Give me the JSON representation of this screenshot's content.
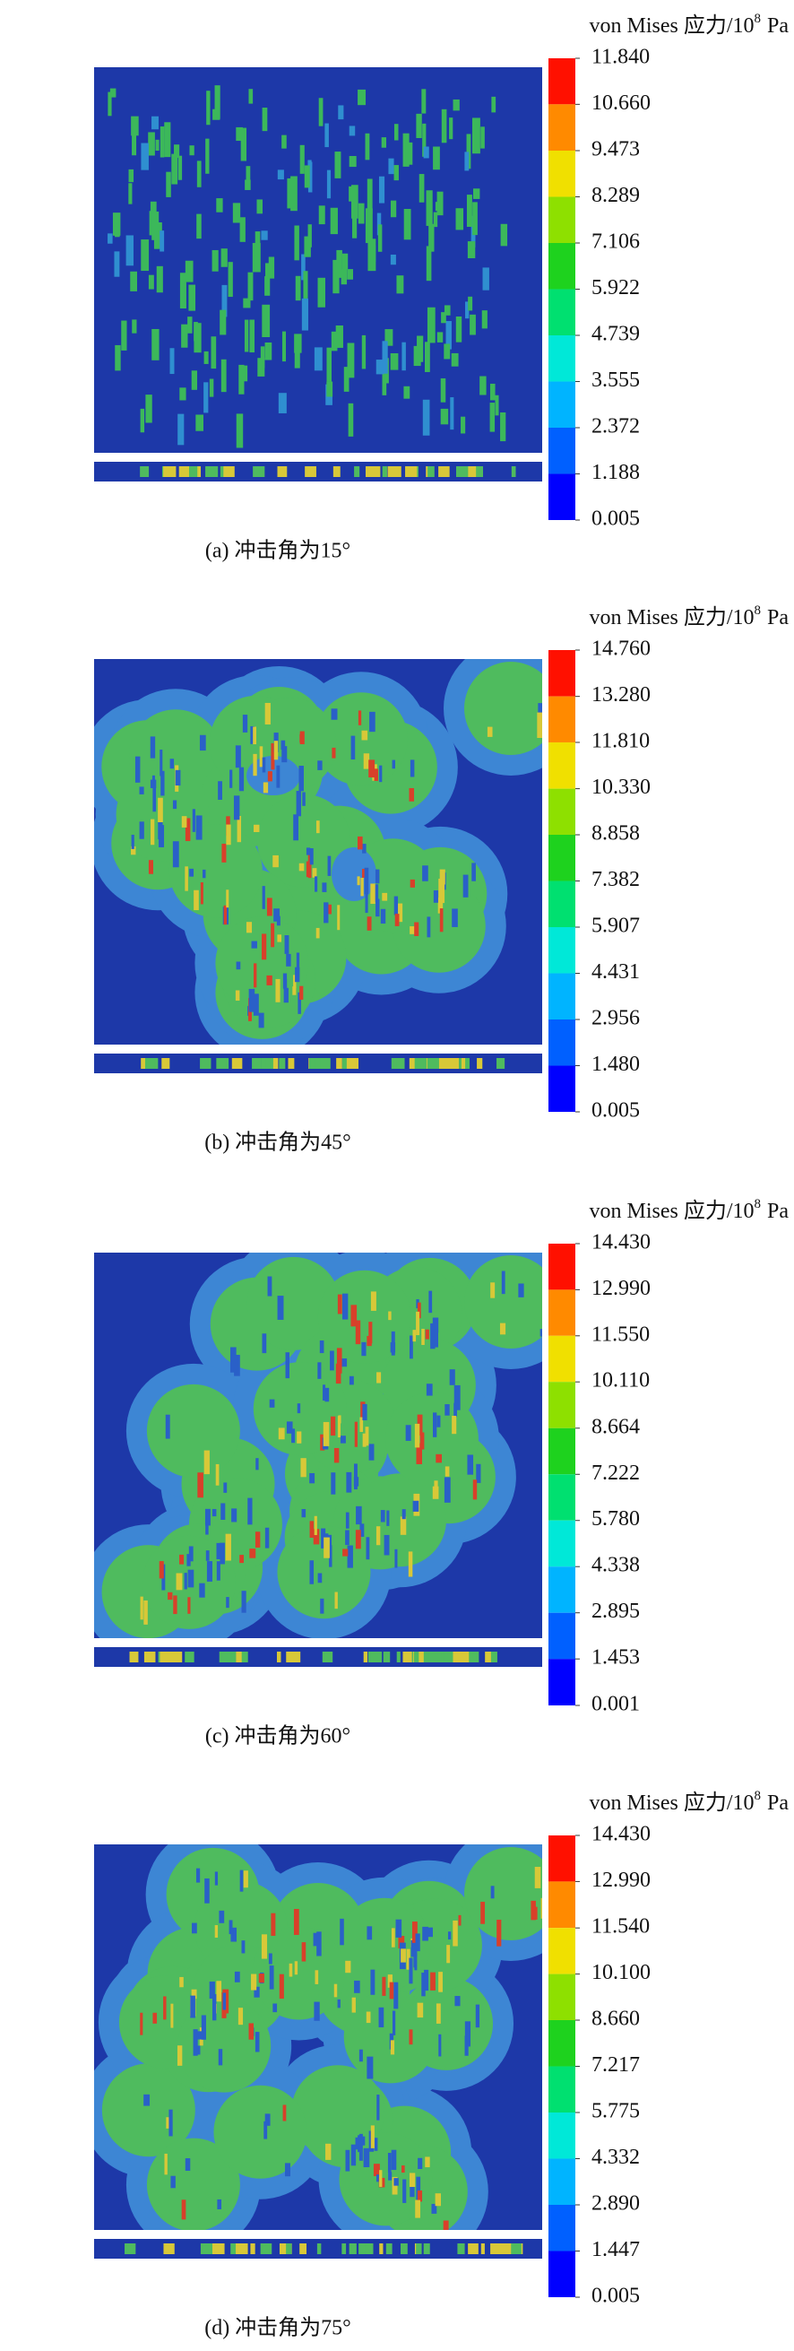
{
  "panels": [
    {
      "legend_title": {
        "prefix": "von Mises 应力/10",
        "exponent": "8",
        "unit": "Pa"
      },
      "colors": [
        "#0000ff",
        "#0060ff",
        "#00b4ff",
        "#00e8d8",
        "#00e070",
        "#1ed21e",
        "#8ee000",
        "#f0e000",
        "#ff8a00",
        "#ff1000"
      ],
      "clim": [
        0.005,
        11.84
      ],
      "ticks": [
        {
          "value": 11.84,
          "label": "11.840"
        },
        {
          "value": 10.66,
          "label": "10.660"
        },
        9.473,
        8.289,
        7.106,
        5.922,
        4.739,
        3.555,
        2.372,
        1.188,
        0.005
      ],
      "caption": "(a) 冲击角为15°"
    },
    {
      "legend_title": {
        "prefix": "von Mises 应力/10",
        "exponent": "8",
        "unit": "Pa"
      },
      "colors": [
        "#0000ff",
        "#0060ff",
        "#00b4ff",
        "#00e8d8",
        "#00e070",
        "#1ed21e",
        "#8ee000",
        "#f0e000",
        "#ff8a00",
        "#ff1000"
      ],
      "clim": [
        0.005,
        14.76
      ],
      "ticks": [
        {
          "value": 14.76,
          "label": "14.760"
        },
        {
          "value": 13.28,
          "label": "13.280"
        },
        {
          "value": 11.81,
          "label": "11.810"
        },
        {
          "value": 10.33,
          "label": "10.330"
        },
        8.858,
        7.382,
        5.907,
        4.431,
        2.956,
        {
          "value": 1.48,
          "label": "1.480"
        },
        0.005
      ],
      "caption": "(b) 冲击角为45°"
    },
    {
      "legend_title": {
        "prefix": "von Mises 应力/10",
        "exponent": "8",
        "unit": "Pa"
      },
      "colors": [
        "#0000ff",
        "#0060ff",
        "#00b4ff",
        "#00e8d8",
        "#00e070",
        "#1ed21e",
        "#8ee000",
        "#f0e000",
        "#ff8a00",
        "#ff1000"
      ],
      "clim": [
        0.001,
        14.43
      ],
      "ticks": [
        {
          "value": 14.43,
          "label": "14.430"
        },
        {
          "value": 12.99,
          "label": "12.990"
        },
        {
          "value": 11.55,
          "label": "11.550"
        },
        {
          "value": 10.11,
          "label": "10.110"
        },
        8.664,
        7.222,
        {
          "value": 5.78,
          "label": "5.780"
        },
        4.338,
        2.895,
        1.453,
        0.001
      ],
      "caption": "(c) 冲击角为60°"
    },
    {
      "legend_title": {
        "prefix": "von Mises 应力/10",
        "exponent": "8",
        "unit": "Pa"
      },
      "colors": [
        "#0000ff",
        "#0060ff",
        "#00b4ff",
        "#00e8d8",
        "#00e070",
        "#1ed21e",
        "#8ee000",
        "#f0e000",
        "#ff8a00",
        "#ff1000"
      ],
      "clim": [
        0.005,
        14.43
      ],
      "ticks": [
        {
          "value": 14.43,
          "label": "14.430"
        },
        {
          "value": 12.99,
          "label": "12.990"
        },
        {
          "value": 11.54,
          "label": "11.540"
        },
        {
          "value": 10.1,
          "label": "10.100"
        },
        {
          "value": 8.66,
          "label": "8.660"
        },
        7.217,
        5.775,
        4.332,
        {
          "value": 2.89,
          "label": "2.890"
        },
        1.447,
        0.005
      ],
      "caption": "(d) 冲击角为75°"
    }
  ]
}
